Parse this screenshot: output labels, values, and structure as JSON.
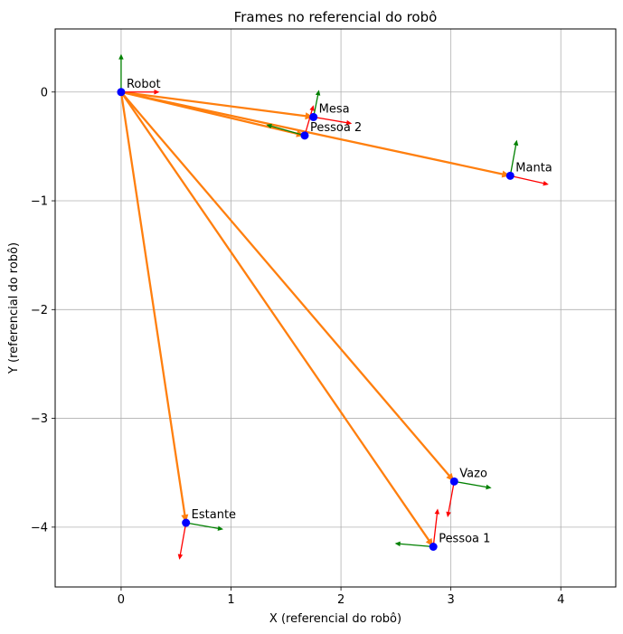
{
  "chart_data": {
    "type": "scatter",
    "title": "Frames no referencial do robô",
    "xlabel": "X (referencial do robô)",
    "ylabel": "Y (referencial do robô)",
    "xlim": [
      -0.6,
      4.5
    ],
    "ylim": [
      -4.55,
      0.58
    ],
    "xticks": [
      0,
      1,
      2,
      3,
      4
    ],
    "yticks": [
      0,
      -1,
      -2,
      -3,
      -4
    ],
    "xtick_labels": [
      "0",
      "1",
      "2",
      "3",
      "4"
    ],
    "ytick_labels": [
      "0",
      "−1",
      "−2",
      "−3",
      "−4"
    ],
    "grid": true,
    "origin": {
      "name": "Robot",
      "x": 0,
      "y": 0
    },
    "frames": [
      {
        "name": "Robot",
        "x": 0.0,
        "y": 0.0,
        "xaxis": [
          0.35,
          0.0
        ],
        "yaxis": [
          0.0,
          0.35
        ]
      },
      {
        "name": "Mesa",
        "x": 1.75,
        "y": -0.23,
        "xaxis": [
          0.35,
          -0.06
        ],
        "yaxis": [
          0.05,
          0.25
        ]
      },
      {
        "name": "Pessoa 2",
        "x": 1.67,
        "y": -0.4,
        "xaxis": [
          0.08,
          0.28
        ],
        "yaxis": [
          -0.35,
          0.1
        ]
      },
      {
        "name": "Manta",
        "x": 3.54,
        "y": -0.77,
        "xaxis": [
          0.35,
          -0.08
        ],
        "yaxis": [
          0.06,
          0.33
        ]
      },
      {
        "name": "Vazo",
        "x": 3.03,
        "y": -3.58,
        "xaxis": [
          -0.06,
          -0.33
        ],
        "yaxis": [
          0.34,
          -0.06
        ]
      },
      {
        "name": "Estante",
        "x": 0.59,
        "y": -3.96,
        "xaxis": [
          -0.06,
          -0.34
        ],
        "yaxis": [
          0.34,
          -0.06
        ]
      },
      {
        "name": "Pessoa 1",
        "x": 2.84,
        "y": -4.18,
        "xaxis": [
          0.04,
          0.35
        ],
        "yaxis": [
          -0.35,
          0.03
        ]
      }
    ],
    "colors": {
      "point": "#0000ff",
      "x_axis_arrow": "#ff0000",
      "y_axis_arrow": "#008000",
      "link_arrow": "#ff7f0e",
      "grid": "#b0b0b0"
    }
  }
}
